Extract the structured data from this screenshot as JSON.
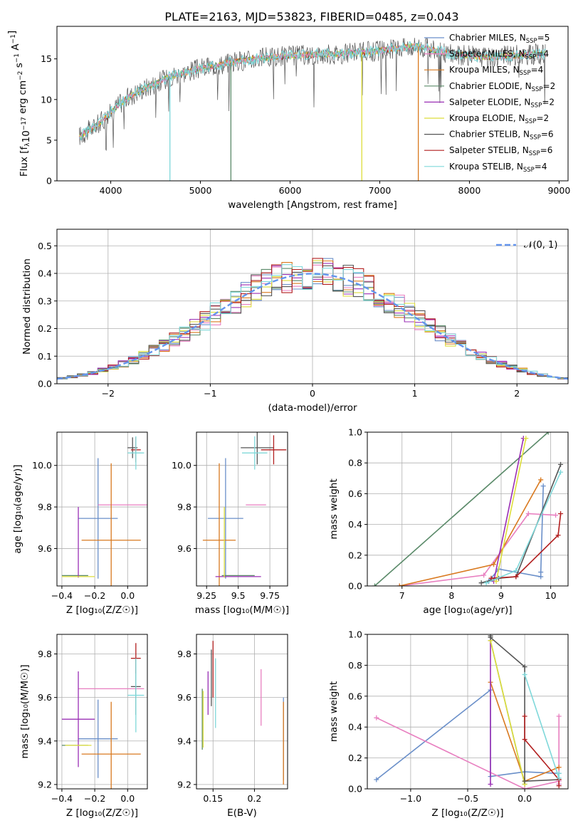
{
  "figure_title": "PLATE=2163, MJD=53823, FIBERID=0485, z=0.043",
  "colors": {
    "Chabrier MILES": "#6a8fc9",
    "Salpeter MILES": "#e87fc0",
    "Kroupa MILES": "#d9791f",
    "Chabrier ELODIE": "#5a8a69",
    "Salpeter ELODIE": "#9a2fb5",
    "Kroupa ELODIE": "#dede3a",
    "Chabrier STELIB": "#555555",
    "Salpeter STELIB": "#b21f1f",
    "Kroupa STELIB": "#7fd8da",
    "gaussian": "#6495ed",
    "grid": "#b0b0b0"
  },
  "chart_data": [
    {
      "id": "spectrum",
      "type": "line",
      "xlabel": "wavelength [Angstrom, rest frame]",
      "ylabel": "Flux [f_λ10^-17 erg cm^-2 s^-1 A^-1]",
      "xlim": [
        3400,
        9100
      ],
      "ylim": [
        0,
        19
      ],
      "xticks": [
        4000,
        5000,
        6000,
        7000,
        8000,
        9000
      ],
      "yticks": [
        0,
        5,
        10,
        15
      ],
      "grid": false,
      "legend_position": "top-right",
      "legend": [
        {
          "model": "Chabrier MILES",
          "label": "Chabrier MILES, N",
          "sub": "SSP",
          "n": "=5"
        },
        {
          "model": "Salpeter MILES",
          "label": "Salpeter MILES, N",
          "sub": "SSP",
          "n": "=4"
        },
        {
          "model": "Kroupa MILES",
          "label": "Kroupa MILES, N",
          "sub": "SSP",
          "n": "=4"
        },
        {
          "model": "Chabrier ELODIE",
          "label": "Chabrier ELODIE, N",
          "sub": "SSP",
          "n": "=2"
        },
        {
          "model": "Salpeter ELODIE",
          "label": "Salpeter ELODIE, N",
          "sub": "SSP",
          "n": "=2"
        },
        {
          "model": "Kroupa ELODIE",
          "label": "Kroupa ELODIE, N",
          "sub": "SSP",
          "n": "=2"
        },
        {
          "model": "Chabrier STELIB",
          "label": "Chabrier STELIB, N",
          "sub": "SSP",
          "n": "=6"
        },
        {
          "model": "Salpeter STELIB",
          "label": "Salpeter STELIB, N",
          "sub": "SSP",
          "n": "=6"
        },
        {
          "model": "Kroupa STELIB",
          "label": "Kroupa STELIB, N",
          "sub": "SSP",
          "n": "=4"
        }
      ],
      "continuum": [
        [
          3650,
          5.5
        ],
        [
          3800,
          6.5
        ],
        [
          3950,
          7.8
        ],
        [
          4100,
          9.5
        ],
        [
          4300,
          11.0
        ],
        [
          4500,
          12.0
        ],
        [
          4700,
          13.0
        ],
        [
          5000,
          13.8
        ],
        [
          5300,
          14.5
        ],
        [
          5600,
          15.0
        ],
        [
          6000,
          15.4
        ],
        [
          6500,
          15.6
        ],
        [
          7000,
          16.0
        ],
        [
          7400,
          16.6
        ],
        [
          7800,
          15.6
        ],
        [
          8200,
          15.2
        ],
        [
          8600,
          15.5
        ],
        [
          8850,
          15.6
        ]
      ],
      "drops": [
        {
          "model": "Kroupa STELIB",
          "x": 4660,
          "y": 0
        },
        {
          "model": "Chabrier ELODIE",
          "x": 5340,
          "y": 0
        },
        {
          "model": "Kroupa ELODIE",
          "x": 6800,
          "y": 0
        },
        {
          "model": "Kroupa MILES",
          "x": 7430,
          "y": 0
        }
      ]
    },
    {
      "id": "residuals",
      "type": "area",
      "xlabel": "(data-model)/error",
      "ylabel": "Normed distribution",
      "xlim": [
        -2.5,
        2.5
      ],
      "ylim": [
        0,
        0.56
      ],
      "xticks": [
        -2,
        -1,
        0,
        1,
        2
      ],
      "yticks": [
        0.0,
        0.1,
        0.2,
        0.3,
        0.4,
        0.5
      ],
      "grid": true,
      "legend_position": "top-right",
      "legend_label": "𝒩(0, 1)",
      "bin_width": 0.1
    },
    {
      "id": "age-vs-Z",
      "type": "scatter",
      "xlabel": "Z [log₁₀(Z/Z☉)]",
      "ylabel": "age  [log₁₀(age/yr)]",
      "xlim": [
        -0.43,
        0.12
      ],
      "ylim": [
        9.42,
        10.16
      ],
      "xticks": [
        -0.4,
        -0.2,
        0.0
      ],
      "yticks": [
        9.6,
        9.8,
        10.0
      ],
      "grid": true,
      "points": [
        {
          "model": "Chabrier MILES",
          "x": -0.18,
          "y": 9.745,
          "xerr": 0.12,
          "yerr": 0.29
        },
        {
          "model": "Salpeter MILES",
          "x": 0.0,
          "y": 9.81,
          "xerr": 0.18,
          "yerr": 0.0
        },
        {
          "model": "Kroupa MILES",
          "x": -0.1,
          "y": 9.64,
          "xerr": 0.18,
          "yerr": 0.37
        },
        {
          "model": "Chabrier ELODIE",
          "x": -0.32,
          "y": 9.47,
          "xerr": 0.08,
          "yerr": 0.0
        },
        {
          "model": "Salpeter ELODIE",
          "x": -0.3,
          "y": 9.63,
          "xerr": 0.0,
          "yerr": 0.17
        },
        {
          "model": "Kroupa ELODIE",
          "x": -0.3,
          "y": 9.465,
          "xerr": 0.1,
          "yerr": 0.0
        },
        {
          "model": "Chabrier STELIB",
          "x": 0.03,
          "y": 10.085,
          "xerr": 0.03,
          "yerr": 0.05
        },
        {
          "model": "Salpeter STELIB",
          "x": 0.05,
          "y": 10.075,
          "xerr": 0.03,
          "yerr": 0.06
        },
        {
          "model": "Kroupa STELIB",
          "x": 0.05,
          "y": 10.06,
          "xerr": 0.05,
          "yerr": 0.08
        }
      ]
    },
    {
      "id": "age-vs-mass",
      "type": "scatter",
      "xlabel": "mass [log₁₀(M/M☉)]",
      "ylabel": "",
      "xlim": [
        9.17,
        9.89
      ],
      "ylim": [
        9.42,
        10.16
      ],
      "xticks": [
        9.25,
        9.5,
        9.75
      ],
      "yticks": [
        9.6,
        9.8,
        10.0
      ],
      "grid": true,
      "points": [
        {
          "model": "Chabrier MILES",
          "x": 9.4,
          "y": 9.745,
          "xerr": 0.14,
          "yerr": 0.29
        },
        {
          "model": "Salpeter MILES",
          "x": 9.64,
          "y": 9.81,
          "xerr": 0.08,
          "yerr": 0.0
        },
        {
          "model": "Kroupa MILES",
          "x": 9.35,
          "y": 9.64,
          "xerr": 0.13,
          "yerr": 0.37
        },
        {
          "model": "Chabrier ELODIE",
          "x": 9.5,
          "y": 9.47,
          "xerr": 0.13,
          "yerr": 0.0
        },
        {
          "model": "Salpeter ELODIE",
          "x": 9.5,
          "y": 9.465,
          "xerr": 0.18,
          "yerr": 0.0
        },
        {
          "model": "Kroupa ELODIE",
          "x": 9.39,
          "y": 9.63,
          "xerr": 0.0,
          "yerr": 0.17
        },
        {
          "model": "Chabrier STELIB",
          "x": 9.65,
          "y": 10.085,
          "xerr": 0.13,
          "yerr": 0.08
        },
        {
          "model": "Salpeter STELIB",
          "x": 9.78,
          "y": 10.075,
          "xerr": 0.1,
          "yerr": 0.07
        },
        {
          "model": "Kroupa STELIB",
          "x": 9.63,
          "y": 10.06,
          "xerr": 0.1,
          "yerr": 0.08
        }
      ]
    },
    {
      "id": "weight-vs-age",
      "type": "line",
      "xlabel": "age  [log₁₀(age/yr)]",
      "ylabel": "mass weight",
      "xlim": [
        6.3,
        10.35
      ],
      "ylim": [
        0,
        1
      ],
      "xticks": [
        7,
        8,
        9,
        10
      ],
      "yticks": [
        0.0,
        0.2,
        0.4,
        0.6,
        0.8,
        1.0
      ],
      "grid": true,
      "series": [
        {
          "model": "Chabrier MILES",
          "x": [
            8.75,
            8.95,
            9.8,
            9.8,
            9.85
          ],
          "y": [
            0.03,
            0.11,
            0.06,
            0.09,
            0.65
          ]
        },
        {
          "model": "Salpeter MILES",
          "x": [
            6.95,
            8.65,
            9.55,
            10.1
          ],
          "y": [
            0.0,
            0.07,
            0.47,
            0.46
          ]
        },
        {
          "model": "Kroupa MILES",
          "x": [
            6.95,
            8.85,
            9.8
          ],
          "y": [
            0.0,
            0.14,
            0.69
          ]
        },
        {
          "model": "Chabrier ELODIE",
          "x": [
            6.45,
            9.95
          ],
          "y": [
            0.0,
            1.0
          ]
        },
        {
          "model": "Salpeter ELODIE",
          "x": [
            8.85,
            9.45
          ],
          "y": [
            0.03,
            0.96
          ]
        },
        {
          "model": "Kroupa ELODIE",
          "x": [
            8.9,
            9.5
          ],
          "y": [
            0.03,
            0.96
          ]
        },
        {
          "model": "Chabrier STELIB",
          "x": [
            8.6,
            8.95,
            9.3,
            10.2
          ],
          "y": [
            0.02,
            0.05,
            0.06,
            0.79
          ]
        },
        {
          "model": "Salpeter STELIB",
          "x": [
            8.8,
            9.3,
            10.15,
            10.2
          ],
          "y": [
            0.05,
            0.06,
            0.33,
            0.47
          ]
        },
        {
          "model": "Kroupa STELIB",
          "x": [
            8.7,
            9.3,
            10.2
          ],
          "y": [
            0.02,
            0.1,
            0.74
          ]
        }
      ]
    },
    {
      "id": "mass-vs-Z",
      "type": "scatter",
      "xlabel": "Z [log₁₀(Z/Z☉)]",
      "ylabel": "mass [log₁₀(M/M☉)]",
      "xlim": [
        -0.43,
        0.12
      ],
      "ylim": [
        9.18,
        9.89
      ],
      "xticks": [
        -0.4,
        -0.2,
        0.0
      ],
      "yticks": [
        9.2,
        9.4,
        9.6,
        9.8
      ],
      "grid": true,
      "points": [
        {
          "model": "Chabrier MILES",
          "x": -0.18,
          "y": 9.41,
          "xerr": 0.12,
          "yerr": 0.18
        },
        {
          "model": "Salpeter MILES",
          "x": -0.1,
          "y": 9.64,
          "xerr": 0.2,
          "yerr": 0.0
        },
        {
          "model": "Kroupa MILES",
          "x": -0.1,
          "y": 9.34,
          "xerr": 0.18,
          "yerr": 0.24
        },
        {
          "model": "Chabrier ELODIE",
          "x": -0.32,
          "y": 9.38,
          "xerr": 0.08,
          "yerr": 0.0
        },
        {
          "model": "Salpeter ELODIE",
          "x": -0.3,
          "y": 9.5,
          "xerr": 0.1,
          "yerr": 0.22
        },
        {
          "model": "Kroupa ELODIE",
          "x": -0.3,
          "y": 9.38,
          "xerr": 0.08,
          "yerr": 0.0
        },
        {
          "model": "Chabrier STELIB",
          "x": 0.05,
          "y": 9.65,
          "xerr": 0.03,
          "yerr": 0.13
        },
        {
          "model": "Salpeter STELIB",
          "x": 0.05,
          "y": 9.78,
          "xerr": 0.03,
          "yerr": 0.07
        },
        {
          "model": "Kroupa STELIB",
          "x": 0.05,
          "y": 9.61,
          "xerr": 0.05,
          "yerr": 0.17
        }
      ]
    },
    {
      "id": "mass-vs-ebv",
      "type": "scatter",
      "xlabel": "E(B-V)",
      "ylabel": "",
      "xlim": [
        0.13,
        0.24
      ],
      "ylim": [
        9.18,
        9.89
      ],
      "xticks": [
        0.15,
        0.2
      ],
      "yticks": [
        9.2,
        9.4,
        9.6,
        9.8
      ],
      "grid": true,
      "points": [
        {
          "model": "Chabrier MILES",
          "x": 0.235,
          "y": 9.41,
          "xerr": 0.0,
          "yerr": 0.19
        },
        {
          "model": "Salpeter MILES",
          "x": 0.208,
          "y": 9.6,
          "xerr": 0.0,
          "yerr": 0.13
        },
        {
          "model": "Kroupa MILES",
          "x": 0.235,
          "y": 9.39,
          "xerr": 0.0,
          "yerr": 0.19
        },
        {
          "model": "Chabrier ELODIE",
          "x": 0.137,
          "y": 9.5,
          "xerr": 0.0,
          "yerr": 0.14
        },
        {
          "model": "Salpeter ELODIE",
          "x": 0.144,
          "y": 9.62,
          "xerr": 0.0,
          "yerr": 0.1
        },
        {
          "model": "Kroupa ELODIE",
          "x": 0.138,
          "y": 9.5,
          "xerr": 0.0,
          "yerr": 0.13
        },
        {
          "model": "Chabrier STELIB",
          "x": 0.148,
          "y": 9.69,
          "xerr": 0.0,
          "yerr": 0.13
        },
        {
          "model": "Salpeter STELIB",
          "x": 0.15,
          "y": 9.73,
          "xerr": 0.0,
          "yerr": 0.13
        },
        {
          "model": "Kroupa STELIB",
          "x": 0.153,
          "y": 9.62,
          "xerr": 0.0,
          "yerr": 0.16
        }
      ]
    },
    {
      "id": "weight-vs-Z",
      "type": "line",
      "xlabel": "Z [log₁₀(Z/Z☉)]",
      "ylabel": "mass weight",
      "xlim": [
        -1.38,
        0.38
      ],
      "ylim": [
        0,
        1
      ],
      "xticks": [
        -1.0,
        -0.5,
        0.0
      ],
      "yticks": [
        0.0,
        0.2,
        0.4,
        0.6,
        0.8,
        1.0
      ],
      "grid": true,
      "series": [
        {
          "model": "Chabrier MILES",
          "x": [
            -1.3,
            -0.3,
            -0.3,
            0.0,
            0.3,
            0.3
          ],
          "y": [
            0.06,
            0.64,
            0.08,
            0.11,
            0.1,
            0.03
          ]
        },
        {
          "model": "Salpeter MILES",
          "x": [
            -1.3,
            0.0,
            0.3,
            0.3,
            0.3
          ],
          "y": [
            0.46,
            0.0,
            0.05,
            0.47,
            0.03
          ]
        },
        {
          "model": "Kroupa MILES",
          "x": [
            -0.3,
            0.0,
            0.3
          ],
          "y": [
            0.69,
            0.05,
            0.14
          ]
        },
        {
          "model": "Chabrier ELODIE",
          "x": [
            -0.3,
            0.0
          ],
          "y": [
            0.96,
            0.03
          ]
        },
        {
          "model": "Salpeter ELODIE",
          "x": [
            -0.3,
            -0.3
          ],
          "y": [
            0.96,
            0.03
          ]
        },
        {
          "model": "Kroupa ELODIE",
          "x": [
            -0.3,
            0.0
          ],
          "y": [
            0.96,
            0.03
          ]
        },
        {
          "model": "Chabrier STELIB",
          "x": [
            -0.3,
            -0.3,
            0.0,
            0.0,
            0.3
          ],
          "y": [
            0.99,
            0.98,
            0.79,
            0.05,
            0.06
          ]
        },
        {
          "model": "Salpeter STELIB",
          "x": [
            0.0,
            0.0,
            0.3,
            0.3
          ],
          "y": [
            0.47,
            0.32,
            0.06,
            0.02
          ]
        },
        {
          "model": "Kroupa STELIB",
          "x": [
            0.0,
            0.3,
            0.3
          ],
          "y": [
            0.74,
            0.07,
            0.1
          ]
        }
      ]
    }
  ]
}
